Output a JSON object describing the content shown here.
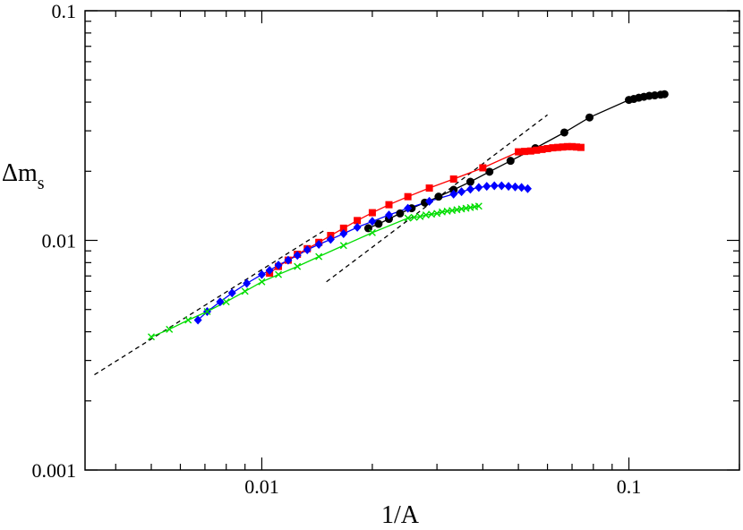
{
  "chart_data": {
    "type": "line",
    "title": "",
    "xlabel": "1/A",
    "ylabel_main": "Δm",
    "ylabel_sub": "s",
    "x_scale": "log",
    "y_scale": "log",
    "xlim": [
      0.0033,
      0.2
    ],
    "ylim": [
      0.001,
      0.1
    ],
    "x_ticks": [
      {
        "value": 0.01,
        "label": "0.01"
      },
      {
        "value": 0.1,
        "label": "0.1"
      }
    ],
    "y_ticks": [
      {
        "value": 0.001,
        "label": "0.001"
      },
      {
        "value": 0.01,
        "label": "0.01"
      },
      {
        "value": 0.1,
        "label": "0.1"
      }
    ],
    "grid": false,
    "legend": "none",
    "series": [
      {
        "color": "#000000",
        "marker": "circle",
        "x": [
          0.0195,
          0.0208,
          0.0222,
          0.0238,
          0.0256,
          0.0278,
          0.0303,
          0.0333,
          0.037,
          0.0417,
          0.0476,
          0.0556,
          0.0667,
          0.0781,
          0.1,
          0.1031,
          0.1064,
          0.1099,
          0.1136,
          0.1176,
          0.122,
          0.125
        ],
        "y": [
          0.0113,
          0.0118,
          0.0124,
          0.0131,
          0.0138,
          0.0146,
          0.0155,
          0.0166,
          0.018,
          0.0199,
          0.0222,
          0.0252,
          0.0295,
          0.0343,
          0.0409,
          0.0413,
          0.0418,
          0.0422,
          0.0426,
          0.0428,
          0.0431,
          0.0433
        ]
      },
      {
        "color": "#ff0000",
        "marker": "square",
        "x": [
          0.0105,
          0.0111,
          0.0118,
          0.0125,
          0.0133,
          0.0143,
          0.0154,
          0.0167,
          0.0182,
          0.02,
          0.0222,
          0.025,
          0.0286,
          0.0333,
          0.04,
          0.05,
          0.052,
          0.054,
          0.056,
          0.058,
          0.06,
          0.062,
          0.064,
          0.066,
          0.068,
          0.07,
          0.072,
          0.074
        ],
        "y": [
          0.0072,
          0.0077,
          0.0082,
          0.0087,
          0.0092,
          0.0098,
          0.0105,
          0.0113,
          0.0122,
          0.0132,
          0.0143,
          0.0155,
          0.0169,
          0.0185,
          0.0207,
          0.0243,
          0.0244,
          0.0245,
          0.0247,
          0.0249,
          0.0251,
          0.0253,
          0.0254,
          0.0255,
          0.0256,
          0.0256,
          0.0255,
          0.0254
        ]
      },
      {
        "color": "#0000ff",
        "marker": "diamond",
        "x": [
          0.0067,
          0.0071,
          0.0077,
          0.0083,
          0.0091,
          0.01,
          0.0105,
          0.0111,
          0.0118,
          0.0125,
          0.0133,
          0.0143,
          0.0154,
          0.0167,
          0.0182,
          0.02,
          0.0222,
          0.025,
          0.0286,
          0.0333,
          0.035,
          0.037,
          0.039,
          0.041,
          0.043,
          0.045,
          0.047,
          0.049,
          0.051,
          0.053
        ],
        "y": [
          0.0045,
          0.0049,
          0.0054,
          0.0059,
          0.0065,
          0.0071,
          0.0074,
          0.0078,
          0.0082,
          0.0086,
          0.0091,
          0.0096,
          0.0101,
          0.0107,
          0.0114,
          0.0121,
          0.0129,
          0.0138,
          0.0148,
          0.0159,
          0.0163,
          0.0167,
          0.017,
          0.0172,
          0.0173,
          0.0173,
          0.0172,
          0.0171,
          0.017,
          0.0168
        ]
      },
      {
        "color": "#00dd00",
        "marker": "cross",
        "x": [
          0.005,
          0.0056,
          0.0063,
          0.0071,
          0.008,
          0.009,
          0.01,
          0.0111,
          0.0125,
          0.0143,
          0.0167,
          0.02,
          0.025,
          0.026,
          0.027,
          0.028,
          0.029,
          0.03,
          0.031,
          0.032,
          0.033,
          0.034,
          0.035,
          0.036,
          0.037,
          0.038,
          0.039
        ],
        "y": [
          0.0038,
          0.0041,
          0.0045,
          0.0049,
          0.0054,
          0.006,
          0.0066,
          0.0071,
          0.0077,
          0.0085,
          0.0095,
          0.0108,
          0.0125,
          0.0126,
          0.0127,
          0.0129,
          0.013,
          0.0131,
          0.0133,
          0.0134,
          0.0135,
          0.0136,
          0.0137,
          0.0138,
          0.0139,
          0.014,
          0.0141
        ]
      }
    ],
    "reference_lines": [
      {
        "style": "dashed",
        "color": "#000000",
        "x": [
          0.0035,
          0.015
        ],
        "y": [
          0.0026,
          0.0112
        ]
      },
      {
        "style": "dashed",
        "color": "#000000",
        "x": [
          0.015,
          0.06
        ],
        "y": [
          0.0066,
          0.0352
        ]
      }
    ]
  }
}
